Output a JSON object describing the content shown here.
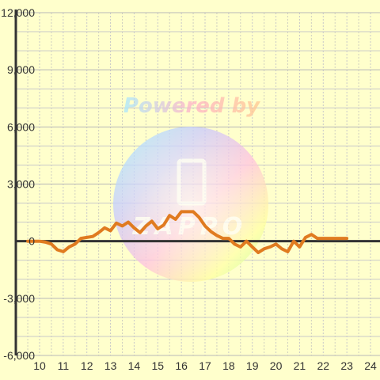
{
  "colors": {
    "background": "#ffffcc",
    "plot_background": "#ffffcc",
    "grid_major": "#c9c9c9",
    "grid_minor": "#d0d0c0",
    "axis": "#333333",
    "series_line": "#e07b20"
  },
  "watermark": {
    "line1": "Powered by",
    "line2": "ZAPPO"
  },
  "chart_data": {
    "type": "line",
    "title": "",
    "xlabel": "",
    "ylabel": "",
    "xlim": [
      9.5,
      24.3
    ],
    "ylim": [
      -6000,
      12000
    ],
    "grid": true,
    "legend": "none",
    "x_ticks": [
      10,
      11,
      12,
      13,
      14,
      15,
      16,
      17,
      18,
      19,
      20,
      21,
      22,
      23,
      24
    ],
    "y_ticks": [
      -6000,
      -3000,
      0,
      3000,
      6000,
      9000,
      12000
    ],
    "x_tick_labels": [
      "10",
      "11",
      "12",
      "13",
      "14",
      "15",
      "16",
      "17",
      "18",
      "19",
      "20",
      "21",
      "22",
      "23",
      "24"
    ],
    "y_tick_labels": [
      "-6,000",
      "-3,000",
      "0",
      "3,000",
      "6,000",
      "9,000",
      "12,000"
    ],
    "series": [
      {
        "x": [
          9.5,
          9.75,
          10.0,
          10.25,
          10.5,
          10.75,
          11.0,
          11.25,
          11.5,
          11.75,
          12.0,
          12.25,
          12.5,
          12.75,
          13.0,
          13.25,
          13.5,
          13.75,
          14.0,
          14.25,
          14.5,
          14.75,
          15.0,
          15.25,
          15.5,
          15.75,
          16.0,
          16.25,
          16.5,
          16.75,
          17.0,
          17.25,
          17.5,
          17.75,
          18.0,
          18.25,
          18.5,
          18.75,
          19.0,
          19.25,
          19.5,
          19.75,
          20.0,
          20.25,
          20.5,
          20.75,
          21.0,
          21.25,
          21.5,
          21.75,
          22.0,
          22.25,
          22.5,
          22.75,
          23.0
        ],
        "values": [
          0,
          0,
          0,
          -50,
          -150,
          -450,
          -550,
          -300,
          -150,
          150,
          200,
          250,
          450,
          700,
          550,
          950,
          800,
          1000,
          700,
          450,
          800,
          1050,
          650,
          850,
          1350,
          1150,
          1550,
          1550,
          1550,
          1250,
          800,
          500,
          300,
          150,
          150,
          -150,
          -300,
          0,
          -300,
          -600,
          -400,
          -300,
          -150,
          -400,
          -550,
          0,
          -300,
          200,
          350,
          150,
          150,
          150,
          150,
          150,
          150
        ]
      }
    ]
  }
}
